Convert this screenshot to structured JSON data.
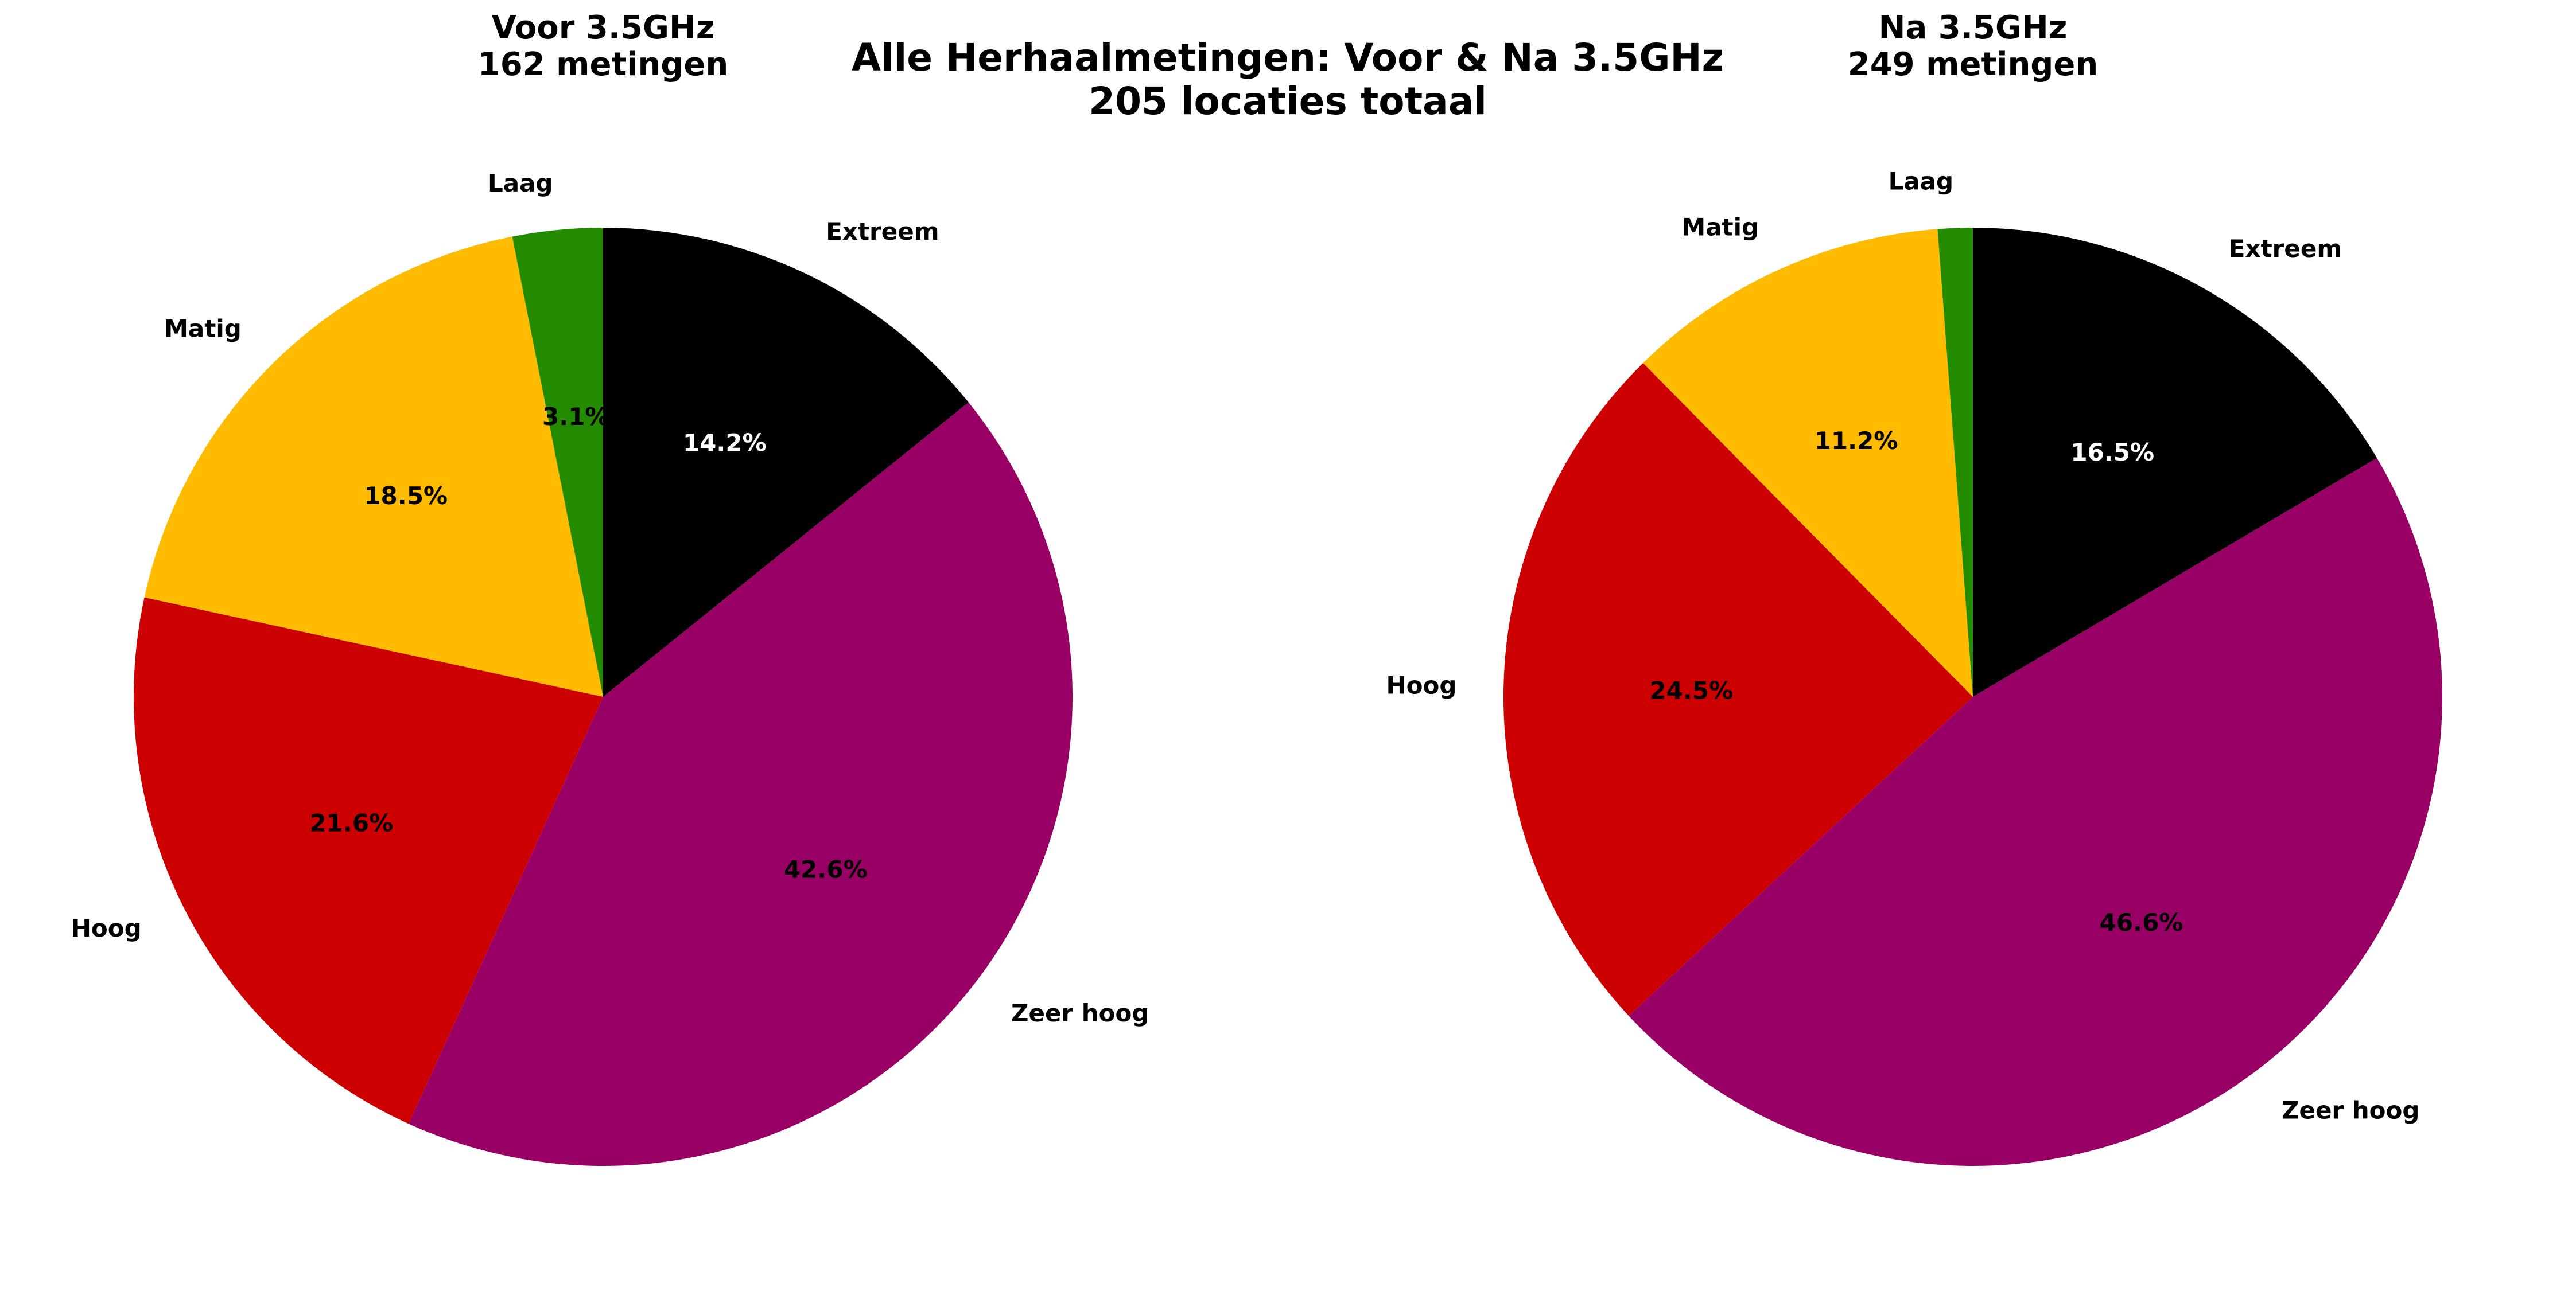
{
  "figure": {
    "title_line1": "Alle Herhaalmetingen: Voor & Na 3.5GHz",
    "title_line2": "205 locaties totaal"
  },
  "chart_data": [
    {
      "type": "pie",
      "title_line1": "Voor 3.5GHz",
      "title_line2": "162 metingen",
      "start_angle_deg": 90,
      "direction": "clockwise",
      "slices": [
        {
          "label": "Extreem",
          "value": 14.2,
          "pct_text": "14.2%",
          "color": "#000000",
          "pct_color": "#ffffff"
        },
        {
          "label": "Zeer hoog",
          "value": 42.6,
          "pct_text": "42.6%",
          "color": "#990066",
          "pct_color": "#000000"
        },
        {
          "label": "Hoog",
          "value": 21.6,
          "pct_text": "21.6%",
          "color": "#cc0000",
          "pct_color": "#000000"
        },
        {
          "label": "Matig",
          "value": 18.5,
          "pct_text": "18.5%",
          "color": "#ffbb00",
          "pct_color": "#000000"
        },
        {
          "label": "Laag",
          "value": 3.1,
          "pct_text": "3.1%",
          "color": "#228b00",
          "pct_color": "#000000"
        }
      ]
    },
    {
      "type": "pie",
      "title_line1": "Na 3.5GHz",
      "title_line2": "249 metingen",
      "start_angle_deg": 90,
      "direction": "clockwise",
      "slices": [
        {
          "label": "Extreem",
          "value": 16.5,
          "pct_text": "16.5%",
          "color": "#000000",
          "pct_color": "#ffffff"
        },
        {
          "label": "Zeer hoog",
          "value": 46.6,
          "pct_text": "46.6%",
          "color": "#990066",
          "pct_color": "#000000"
        },
        {
          "label": "Hoog",
          "value": 24.5,
          "pct_text": "24.5%",
          "color": "#cc0000",
          "pct_color": "#000000"
        },
        {
          "label": "Matig",
          "value": 11.2,
          "pct_text": "11.2%",
          "color": "#ffbb00",
          "pct_color": "#000000"
        },
        {
          "label": "Laag",
          "value": 1.2,
          "pct_text": "",
          "color": "#228b00",
          "pct_color": "#000000"
        }
      ]
    }
  ]
}
